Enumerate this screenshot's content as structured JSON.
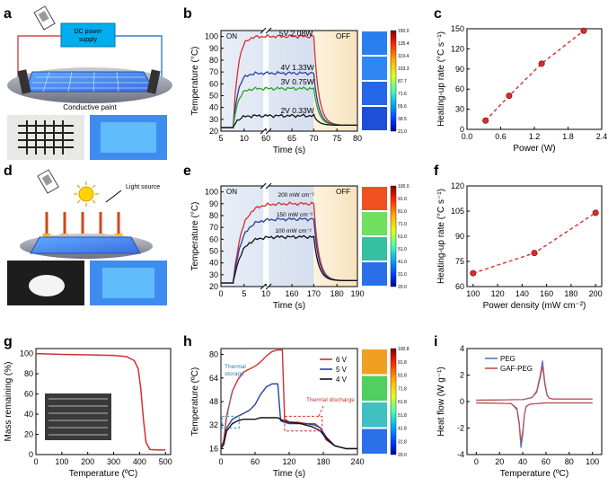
{
  "panel_letters": [
    "a",
    "b",
    "c",
    "d",
    "e",
    "f",
    "g",
    "h",
    "i"
  ],
  "schematic_a": {
    "power_label": "DC power\nsupply",
    "paint_label": "Conductive paint"
  },
  "schematic_d": {
    "light_label": "Light source"
  },
  "colors": {
    "red": "#d32f2f",
    "blue": "#2b3f9e",
    "green": "#2ca02c",
    "black": "#111111",
    "on_bg": "#dfe7f3",
    "off_bg": "#fbefd9",
    "peg": "#4a78c8",
    "gafpeg": "#c0504d"
  },
  "chart_data": [
    {
      "id": "b",
      "type": "line",
      "xlabel": "Time (s)",
      "ylabel": "Temperature (°C)",
      "xticks": [
        "5",
        "10",
        "60",
        "65",
        "70",
        "75",
        "80"
      ],
      "yticks": [
        20,
        30,
        40,
        50,
        60,
        70,
        80,
        90,
        100
      ],
      "ylim": [
        20,
        105
      ],
      "regions": [
        "ON",
        "OFF"
      ],
      "series": [
        {
          "name": "5V 2.08W",
          "color": "#d32f2f",
          "level": 100
        },
        {
          "name": "4V 1.33W",
          "color": "#2b3f9e",
          "level": 69
        },
        {
          "name": "3V 0.75W",
          "color": "#2ca02c",
          "level": 56
        },
        {
          "name": "2V 0.33W",
          "color": "#111111",
          "level": 33
        }
      ],
      "colorbar": {
        "ticks": [
          "150.0",
          "135.4",
          "119.4",
          "103.3",
          "87.7",
          "71.6",
          "55.6",
          "39.5",
          "21.0"
        ]
      }
    },
    {
      "id": "c",
      "type": "line",
      "xlabel": "Power (W)",
      "ylabel": "Heating-up rate (°C s⁻¹)",
      "xticks": [
        "0.0",
        "0.6",
        "1.2",
        "1.8",
        "2.4"
      ],
      "yticks": [
        "0",
        "30",
        "60",
        "90",
        "120",
        "150"
      ],
      "xlim": [
        0,
        2.4
      ],
      "ylim": [
        0,
        150
      ],
      "x": [
        0.33,
        0.75,
        1.33,
        2.08
      ],
      "y": [
        13,
        50,
        98,
        147
      ]
    },
    {
      "id": "e",
      "type": "line",
      "xlabel": "Time (s)",
      "ylabel": "Temperature (°C)",
      "xticks": [
        "0",
        "5",
        "10",
        "160",
        "170",
        "180",
        "190"
      ],
      "yticks": [
        20,
        30,
        40,
        50,
        60,
        70,
        80,
        90,
        100
      ],
      "ylim": [
        20,
        105
      ],
      "regions": [
        "ON",
        "OFF"
      ],
      "series": [
        {
          "name": "200 mW cm⁻²",
          "color": "#d32f2f",
          "level": 90
        },
        {
          "name": "150 mW cm⁻²",
          "color": "#2b3f9e",
          "level": 77
        },
        {
          "name": "100 mW cm⁻²",
          "color": "#111111",
          "level": 62
        }
      ],
      "colorbar": {
        "ticks": [
          "100.0",
          "91.0",
          "81.0",
          "71.0",
          "61.0",
          "51.0",
          "41.0",
          "31.0",
          "20.0"
        ]
      }
    },
    {
      "id": "f",
      "type": "line",
      "xlabel": "Power density (mW cm⁻²)",
      "ylabel": "Heating-up rate (°C s⁻¹)",
      "xticks": [
        "100",
        "120",
        "140",
        "160",
        "180",
        "200"
      ],
      "yticks": [
        "60",
        "75",
        "90",
        "105",
        "120"
      ],
      "xlim": [
        95,
        205
      ],
      "ylim": [
        60,
        120
      ],
      "x": [
        100,
        150,
        200
      ],
      "y": [
        68,
        80,
        104
      ]
    },
    {
      "id": "g",
      "type": "line",
      "xlabel": "Temperature (ºC)",
      "ylabel": "Mass remaining (%)",
      "xticks": [
        "0",
        "100",
        "200",
        "300",
        "400",
        "500"
      ],
      "yticks": [
        "0",
        "20",
        "40",
        "60",
        "80",
        "100"
      ],
      "xlim": [
        0,
        520
      ],
      "ylim": [
        0,
        105
      ],
      "x": [
        0,
        100,
        200,
        300,
        350,
        380,
        395,
        405,
        415,
        425,
        440,
        470,
        500
      ],
      "y": [
        100,
        99.2,
        98.8,
        98.2,
        97,
        93,
        85,
        65,
        35,
        12,
        5,
        4.5,
        4.5
      ]
    },
    {
      "id": "h",
      "type": "line",
      "xlabel": "Time (s)",
      "ylabel": "Temperature (ºC)",
      "xticks": [
        "0",
        "60",
        "120",
        "180",
        "240"
      ],
      "yticks": [
        "16",
        "32",
        "48",
        "64",
        "80"
      ],
      "xlim": [
        0,
        240
      ],
      "ylim": [
        12,
        84
      ],
      "annotations": [
        "Thermal storage",
        "Thermal discharge"
      ],
      "series": [
        {
          "name": "6 V",
          "color": "#d32f2f",
          "x": [
            0,
            5,
            10,
            20,
            30,
            40,
            50,
            60,
            70,
            80,
            90,
            100,
            108,
            112,
            120,
            135,
            150,
            165,
            175,
            185,
            200,
            220,
            240
          ],
          "y": [
            16,
            22,
            38,
            55,
            63,
            68,
            70,
            72,
            75,
            79,
            82,
            83,
            83,
            36,
            34,
            34,
            33,
            33,
            30,
            22,
            18,
            16,
            16
          ]
        },
        {
          "name": "5 V",
          "color": "#2b3f9e",
          "x": [
            0,
            5,
            10,
            20,
            30,
            40,
            50,
            60,
            70,
            80,
            90,
            100,
            105,
            110,
            120,
            135,
            150,
            165,
            175,
            185,
            200,
            220,
            240
          ],
          "y": [
            16,
            20,
            30,
            36,
            38,
            40,
            42,
            46,
            53,
            58,
            60,
            60,
            35,
            34,
            33,
            33,
            33,
            32,
            30,
            24,
            18,
            16,
            16
          ]
        },
        {
          "name": "4 V",
          "color": "#111111",
          "x": [
            0,
            5,
            10,
            20,
            30,
            40,
            50,
            60,
            70,
            80,
            90,
            100,
            105,
            110,
            120,
            140,
            160,
            175,
            185,
            200,
            220,
            240
          ],
          "y": [
            16,
            19,
            28,
            33,
            35,
            36,
            36,
            36,
            37,
            37,
            37,
            37,
            36,
            35,
            34,
            33,
            31,
            28,
            23,
            18,
            16,
            16
          ]
        }
      ],
      "colorbar": {
        "ticks": [
          "100.8",
          "91.8",
          "81.8",
          "71.8",
          "61.8",
          "51.8",
          "41.8",
          "31.8",
          "20.0"
        ]
      }
    },
    {
      "id": "i",
      "type": "line",
      "xlabel": "Temperature (ºC)",
      "ylabel": "Heat flow (W g⁻¹)",
      "xticks": [
        "0",
        "20",
        "40",
        "60",
        "80",
        "100"
      ],
      "yticks": [
        "-4",
        "-2",
        "0",
        "2",
        "4"
      ],
      "xlim": [
        -8,
        108
      ],
      "ylim": [
        -4,
        4
      ],
      "series": [
        {
          "name": "PEG",
          "color": "#4a78c8",
          "heat": {
            "x": [
              0,
              40,
              48,
              52,
              55,
              57,
              59,
              61,
              63,
              66,
              100
            ],
            "y": [
              0.1,
              0.15,
              0.3,
              0.8,
              2.0,
              3.1,
              1.5,
              0.5,
              0.25,
              0.2,
              0.2
            ]
          },
          "cool": {
            "x": [
              0,
              30,
              35,
              37,
              38.5,
              40,
              41.5,
              43,
              46,
              60,
              100
            ],
            "y": [
              -0.1,
              -0.15,
              -0.6,
              -1.8,
              -3.5,
              -2.5,
              -1.0,
              -0.4,
              -0.2,
              -0.1,
              -0.1
            ]
          }
        },
        {
          "name": "GAF-PEG",
          "color": "#c0504d",
          "heat": {
            "x": [
              0,
              40,
              48,
              52,
              55,
              57,
              59,
              61,
              63,
              66,
              100
            ],
            "y": [
              0.1,
              0.15,
              0.3,
              0.7,
              1.8,
              2.7,
              1.3,
              0.45,
              0.25,
              0.2,
              0.2
            ]
          },
          "cool": {
            "x": [
              0,
              30,
              35,
              37,
              38.5,
              40,
              41.5,
              43,
              46,
              60,
              100
            ],
            "y": [
              -0.1,
              -0.15,
              -0.5,
              -1.6,
              -3.1,
              -2.2,
              -0.9,
              -0.35,
              -0.2,
              -0.1,
              -0.1
            ]
          }
        }
      ]
    }
  ]
}
